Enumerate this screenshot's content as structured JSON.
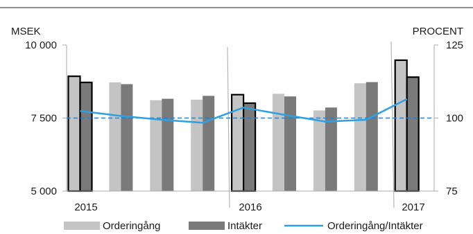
{
  "chart_data": {
    "type": "bar",
    "title": "",
    "left_axis_unit": "MSEK",
    "right_axis_unit": "PROCENT",
    "ylim_left": [
      5000,
      10000
    ],
    "yticks_left": [
      "5 000",
      "7 500",
      "10 000"
    ],
    "ylim_right": [
      75,
      125
    ],
    "yticks_right": [
      "75",
      "100",
      "125"
    ],
    "year_labels": [
      "2015",
      "2016",
      "2017"
    ],
    "series": [
      {
        "name": "Orderingång",
        "color": "#c4c4c4",
        "values": [
          8930,
          8720,
          8110,
          8130,
          8300,
          8330,
          7760,
          8690,
          9480
        ]
      },
      {
        "name": "Intäkter",
        "color": "#7a7a7a",
        "values": [
          8720,
          8660,
          8160,
          8260,
          8010,
          8240,
          7860,
          8730,
          8900
        ]
      },
      {
        "name": "Orderingång/Intäkter",
        "color": "#2e9fe0",
        "axis": "right",
        "values": [
          102.4,
          100.7,
          99.4,
          98.4,
          103.6,
          101.1,
          98.8,
          99.4,
          106.5
        ]
      }
    ],
    "highlighted_quarters": [
      0,
      4,
      8
    ],
    "reference_line": {
      "value": 100,
      "axis": "right",
      "style": "dashed",
      "color": "#2e7fc4"
    }
  }
}
